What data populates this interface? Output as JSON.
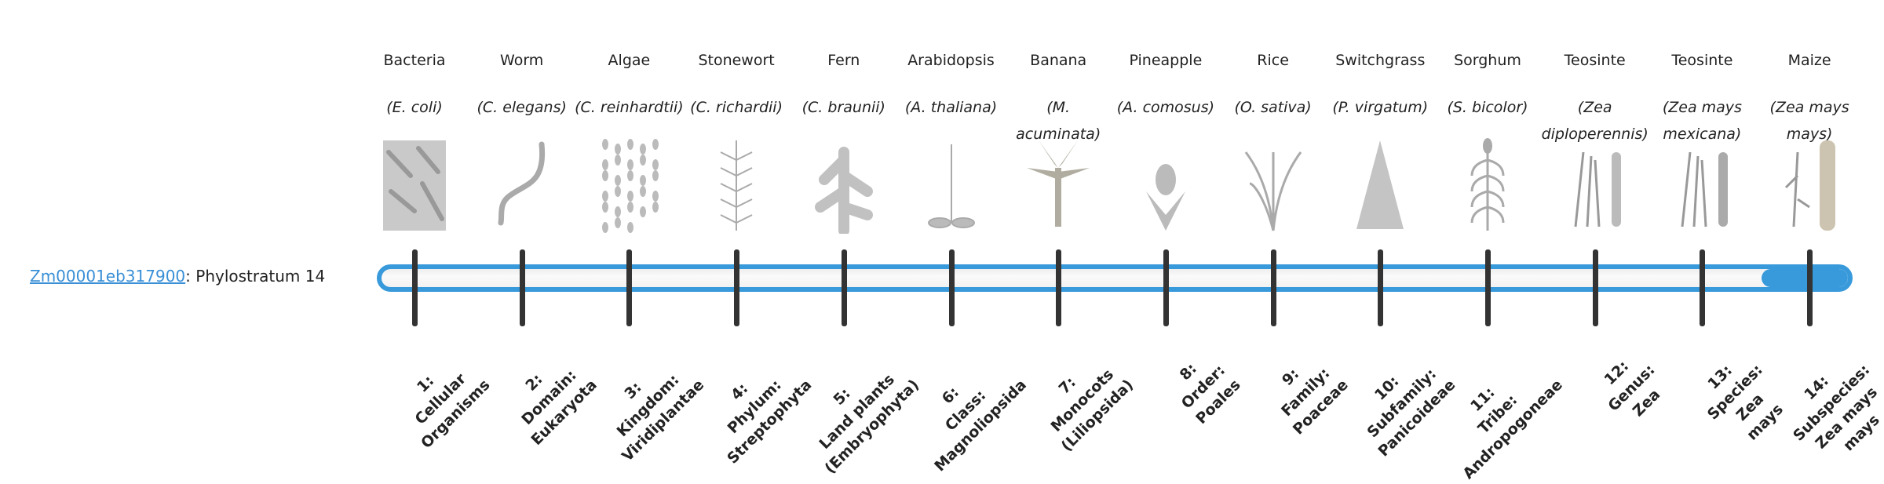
{
  "gene": {
    "id": "Zm00001eb317900",
    "suffix": ": Phylostratum 14"
  },
  "accent_color": "#3899db",
  "progress": {
    "value": 14,
    "max": 14
  },
  "strata": [
    {
      "common": "Bacteria",
      "sci": "(E. coli)",
      "icon": "bacteria-image",
      "level": [
        "1:",
        "Cellular",
        "Organisms"
      ]
    },
    {
      "common": "Worm",
      "sci": "(C. elegans)",
      "icon": "worm-image",
      "level": [
        "2:",
        "Domain:",
        "Eukaryota"
      ]
    },
    {
      "common": "Algae",
      "sci": "(C. reinhardtii)",
      "icon": "algae-image",
      "level": [
        "3:",
        "Kingdom:",
        "Viridiplantae"
      ]
    },
    {
      "common": "Stonewort",
      "sci": "(C. richardii)",
      "icon": "stonewort-image",
      "level": [
        "4:",
        "Phylum:",
        "Streptophyta"
      ]
    },
    {
      "common": "Fern",
      "sci": "(C. braunii)",
      "icon": "fern-image",
      "level": [
        "5:",
        "Land plants",
        "(Embryophyta)"
      ]
    },
    {
      "common": "Arabidopsis",
      "sci": "(A. thaliana)",
      "icon": "arabidopsis-image",
      "level": [
        "6:",
        "Class:",
        "Magnoliopsida"
      ]
    },
    {
      "common": "Banana",
      "sci": "(M. acuminata)",
      "icon": "banana-image",
      "level": [
        "7:",
        "Monocots",
        "(Liliopsida)"
      ]
    },
    {
      "common": "Pineapple",
      "sci": "(A. comosus)",
      "icon": "pineapple-image",
      "level": [
        "8:",
        "Order:",
        "Poales"
      ]
    },
    {
      "common": "Rice",
      "sci": "(O. sativa)",
      "icon": "rice-image",
      "level": [
        "9:",
        "Family:",
        "Poaceae"
      ]
    },
    {
      "common": "Switchgrass",
      "sci": "(P. virgatum)",
      "icon": "switchgrass-image",
      "level": [
        "10:",
        "Subfamily:",
        "Panicoideae"
      ]
    },
    {
      "common": "Sorghum",
      "sci": "(S. bicolor)",
      "icon": "sorghum-image",
      "level": [
        "11:",
        "Tribe:",
        "Andropogoneae"
      ]
    },
    {
      "common": "Teosinte",
      "sci": "(Zea diploperennis)",
      "icon": "teosinte-image",
      "level": [
        "12:",
        "Genus:",
        "Zea"
      ]
    },
    {
      "common": "Teosinte",
      "sci": "(Zea mays mexicana)",
      "icon": "teosinte-mexicana-image",
      "level": [
        "13:",
        "Species:",
        "Zea",
        "mays"
      ]
    },
    {
      "common": "Maize",
      "sci": "(Zea mays mays)",
      "icon": "maize-image",
      "level": [
        "14:",
        "Subspecies:",
        "Zea mays",
        "mays"
      ]
    }
  ]
}
